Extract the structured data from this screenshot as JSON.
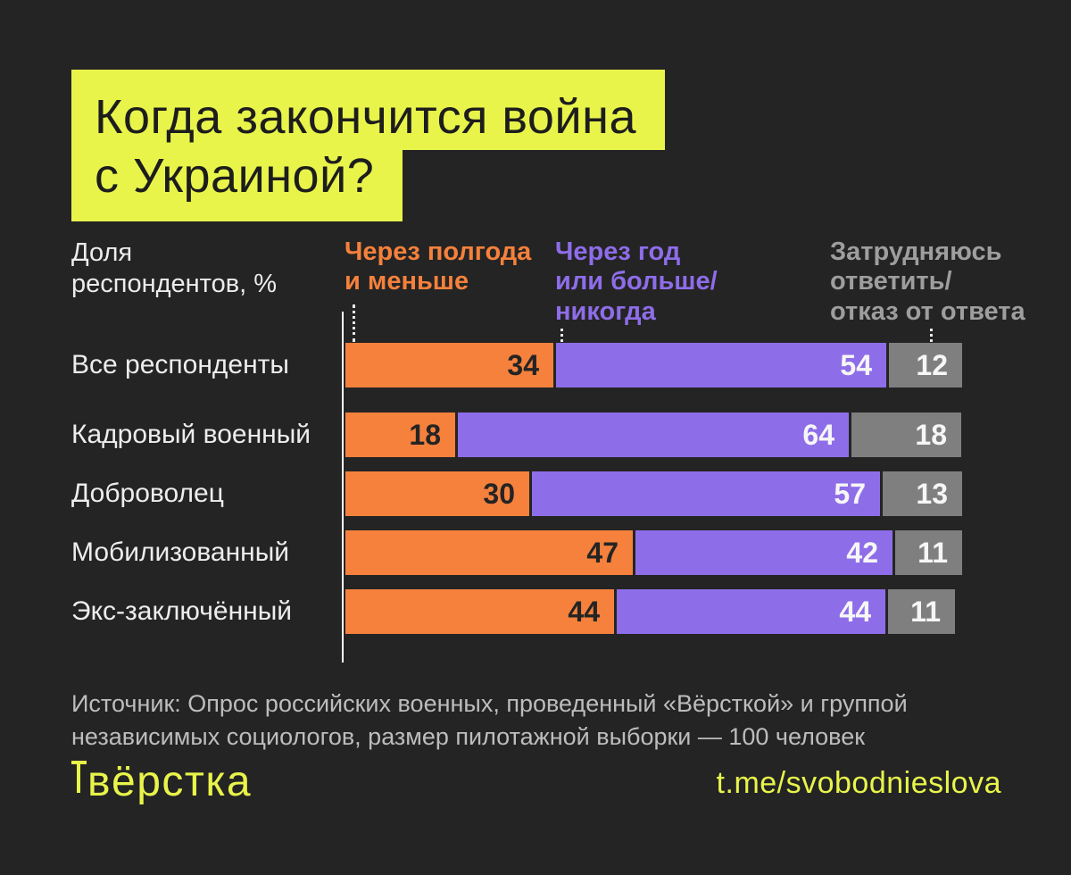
{
  "title": {
    "line1": "Когда закончится война",
    "line2": "с Украиной?"
  },
  "axis_label": "Доля\nреспондентов, %",
  "legend_items": [
    {
      "text": "Через полгода\nи меньше",
      "color": "#F5813C"
    },
    {
      "text": "Через год\nили больше/\nникогда",
      "color": "#8E6DE9"
    },
    {
      "text": "Затрудняюсь\nответить/\nотказ от ответа",
      "color": "#9E9E9E"
    }
  ],
  "chart_data": {
    "type": "bar",
    "orientation": "horizontal",
    "stacked": true,
    "unit": "%",
    "title": "Когда закончится война с Украиной?",
    "xlabel": "Доля респондентов, %",
    "xlim": [
      0,
      100
    ],
    "legend_position": "top",
    "grid": false,
    "categories": [
      "Все респонденты",
      "Кадровый военный",
      "Доброволец",
      "Мобилизованный",
      "Экс-заключённый"
    ],
    "series": [
      {
        "name": "Через полгода и меньше",
        "color": "#F5813C",
        "value_color": "#242424",
        "values": [
          34,
          18,
          30,
          47,
          44
        ]
      },
      {
        "name": "Через год или больше/никогда",
        "color": "#8E6DE9",
        "value_color": "#F6F6F6",
        "values": [
          54,
          64,
          57,
          42,
          44
        ]
      },
      {
        "name": "Затрудняюсь ответить/отказ от ответа",
        "color": "#7F7F7F",
        "value_color": "#F6F6F6",
        "values": [
          12,
          18,
          13,
          11,
          11
        ]
      }
    ]
  },
  "source": {
    "line1": "Источник: Опрос российских военных, проведенный «Вёрсткой» и группой",
    "line2": "независимых социологов, размер пилотажной выборки — 100 человек"
  },
  "footer": {
    "logo": "вёрстка",
    "link": "t.me/svobodnieslova"
  },
  "colors": {
    "background": "#242424",
    "lime": "#E8F44A",
    "title_text": "#1D1D1D",
    "label_text": "#EDEDED",
    "muted_text": "#BDBDBD",
    "axis_line": "#FFFFFF",
    "orange": "#F5813C",
    "purple": "#8E6DE9",
    "gray": "#7F7F7F"
  }
}
